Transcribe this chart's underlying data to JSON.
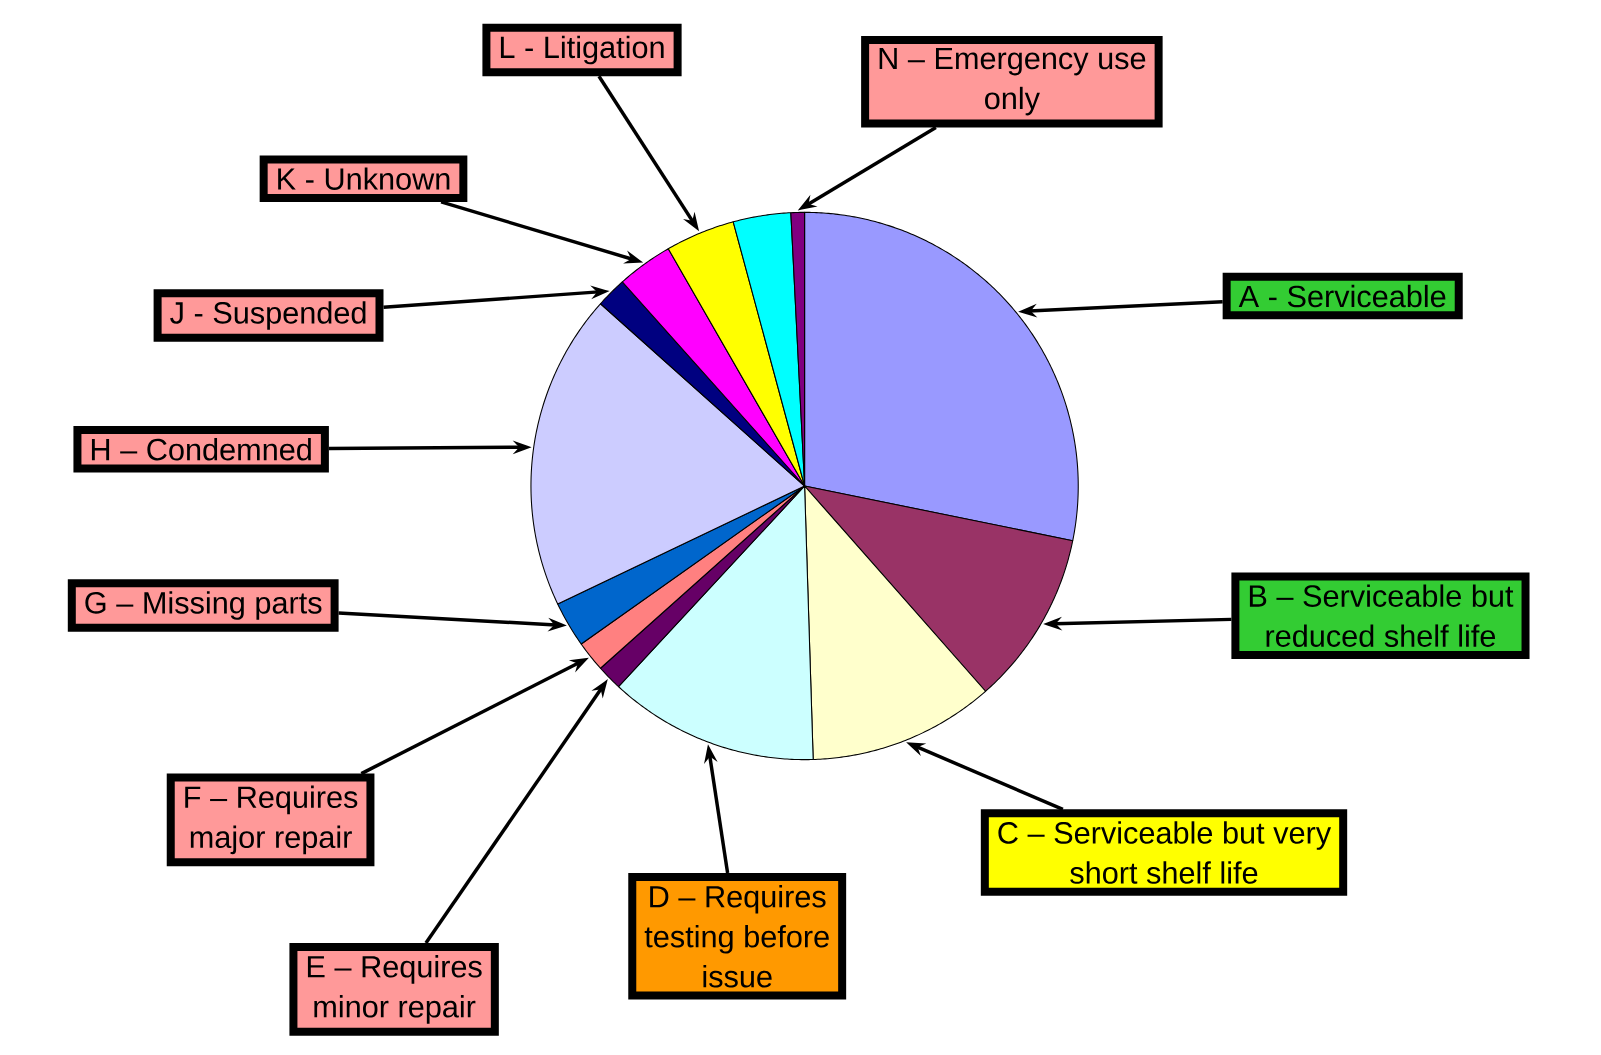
{
  "chart_data": {
    "type": "pie",
    "categories": [
      "A - Serviceable",
      "B – Serviceable but reduced shelf life",
      "C – Serviceable but very short  shelf life",
      "D – Requires testing before issue",
      "E – Requires minor repair",
      "F – Requires major repair",
      "G – Missing parts",
      "H – Condemned",
      "J - Suspended",
      "K - Unknown",
      "L - Litigation",
      null,
      "N – Emergency use only"
    ],
    "values": [
      28.2,
      10.3,
      11.0,
      12.4,
      1.5,
      1.8,
      2.7,
      18.7,
      1.8,
      3.3,
      4.1,
      3.4,
      0.8
    ],
    "colors": [
      "#9999ff",
      "#993366",
      "#ffffcc",
      "#ccffff",
      "#660066",
      "#ff8080",
      "#0066cc",
      "#ccccff",
      "#000080",
      "#ff00ff",
      "#ffff00",
      "#00ffff",
      "#800080"
    ]
  }
}
